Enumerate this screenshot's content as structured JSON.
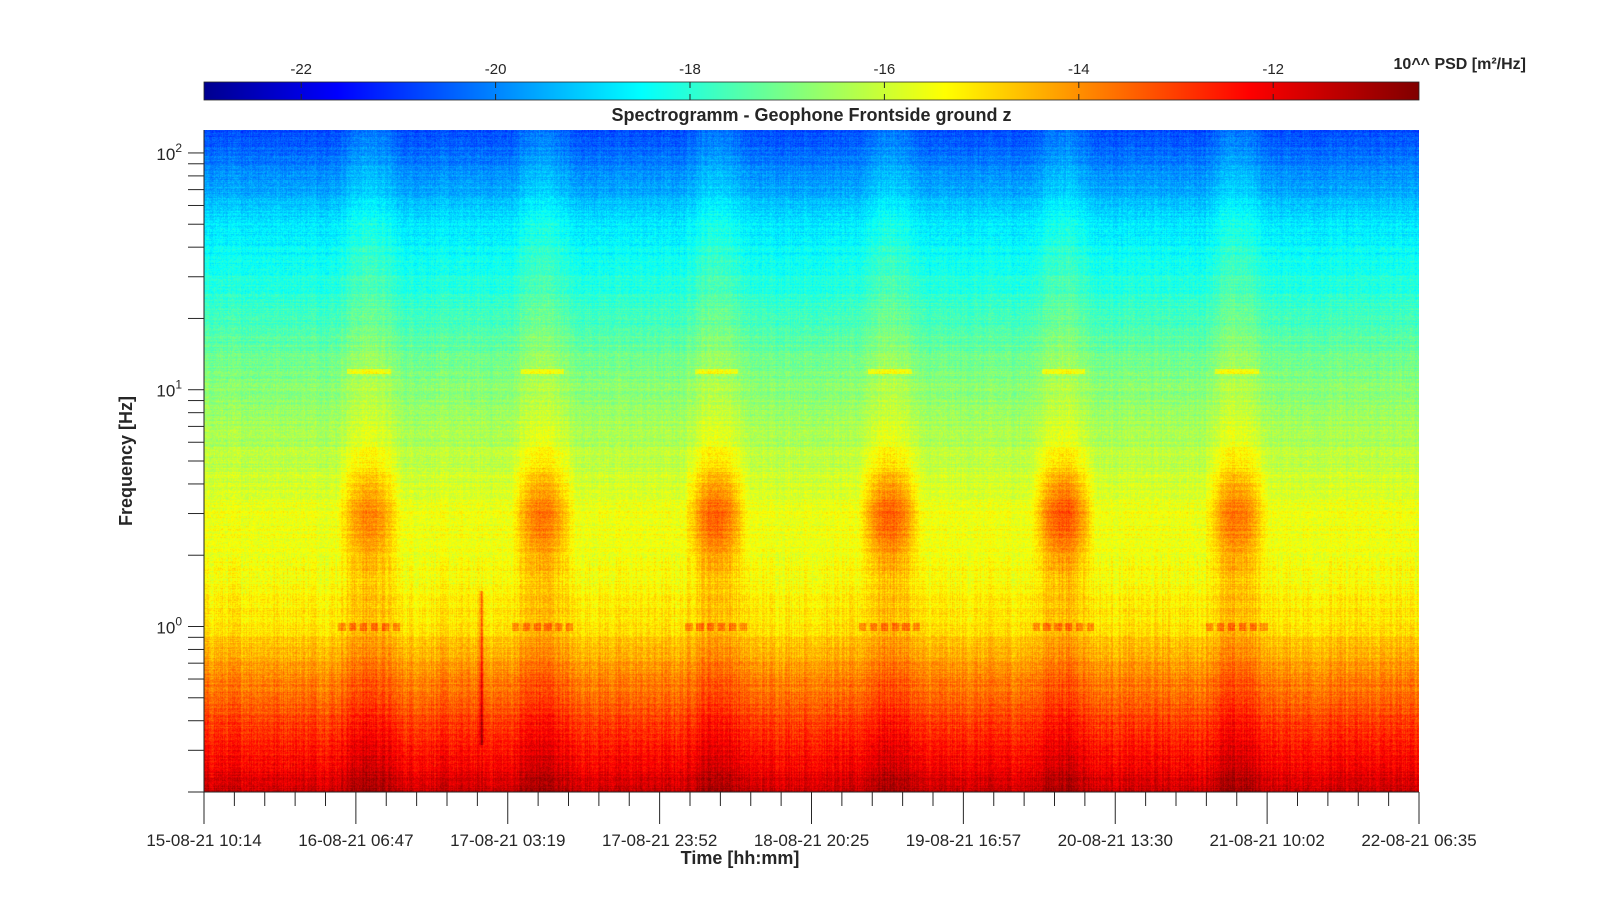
{
  "chart_data": {
    "type": "heatmap",
    "title": "Spectrogramm - Geophone Frontside ground z",
    "xlabel": "Time [hh:mm]",
    "ylabel": "Frequency [Hz]",
    "x_tick_labels": [
      "15-08-21 10:14",
      "16-08-21 06:47",
      "17-08-21 03:19",
      "17-08-21 23:52",
      "18-08-21 20:25",
      "19-08-21 16:57",
      "20-08-21 13:30",
      "21-08-21 10:02",
      "22-08-21 06:35"
    ],
    "y_scale": "log",
    "y_tick_labels": [
      {
        "base": "10",
        "exp": "2",
        "value": 100
      },
      {
        "base": "10",
        "exp": "1",
        "value": 10
      },
      {
        "base": "10",
        "exp": "0",
        "value": 1
      }
    ],
    "ylim": [
      0.2,
      125
    ],
    "colorbar": {
      "label": "10^^ PSD [m²/Hz]",
      "range": [
        -23,
        -10.5
      ],
      "tick_values": [
        -22,
        -20,
        -18,
        -16,
        -14,
        -12
      ],
      "tick_labels": [
        "-22",
        "-20",
        "-18",
        "-16",
        "-14",
        "-12"
      ],
      "colormap": "jet",
      "position": "top"
    },
    "psd_profile": [
      {
        "freq_hz": 0.2,
        "log_psd": -11.4
      },
      {
        "freq_hz": 0.3,
        "log_psd": -12.3
      },
      {
        "freq_hz": 0.5,
        "log_psd": -13.3
      },
      {
        "freq_hz": 0.7,
        "log_psd": -14.0
      },
      {
        "freq_hz": 1.0,
        "log_psd": -14.8
      },
      {
        "freq_hz": 2.0,
        "log_psd": -15.4
      },
      {
        "freq_hz": 3.0,
        "log_psd": -15.3
      },
      {
        "freq_hz": 5.0,
        "log_psd": -16.0
      },
      {
        "freq_hz": 10.0,
        "log_psd": -16.6
      },
      {
        "freq_hz": 20.0,
        "log_psd": -17.5
      },
      {
        "freq_hz": 50.0,
        "log_psd": -18.6
      },
      {
        "freq_hz": 125.0,
        "log_psd": -20.6
      }
    ],
    "daytime_activity": [
      {
        "start": "16-08-21 ~05:00",
        "end": "16-08-21 ~13:00",
        "peak_freq_hz": 3,
        "peak_log_psd": -14.0
      },
      {
        "start": "17-08-21 ~05:00",
        "end": "17-08-21 ~13:00",
        "peak_freq_hz": 3,
        "peak_log_psd": -13.8
      },
      {
        "start": "18-08-21 ~05:00",
        "end": "18-08-21 ~13:00",
        "peak_freq_hz": 3,
        "peak_log_psd": -13.5
      },
      {
        "start": "19-08-21 ~05:00",
        "end": "19-08-21 ~13:00",
        "peak_freq_hz": 3,
        "peak_log_psd": -13.5
      },
      {
        "start": "20-08-21 ~05:00",
        "end": "20-08-21 ~13:00",
        "peak_freq_hz": 3,
        "peak_log_psd": -13.3
      },
      {
        "start": "21-08-21 ~05:00",
        "end": "21-08-21 ~13:00",
        "peak_freq_hz": 3,
        "peak_log_psd": -13.8
      }
    ],
    "tonal_lines": [
      {
        "freq_hz": 1.0,
        "log_psd": -13.5
      },
      {
        "freq_hz": 12.0,
        "log_psd": -15.0
      }
    ],
    "transient_event": {
      "time": "17-08-21 ~01:30",
      "log_psd": -12.5
    }
  }
}
